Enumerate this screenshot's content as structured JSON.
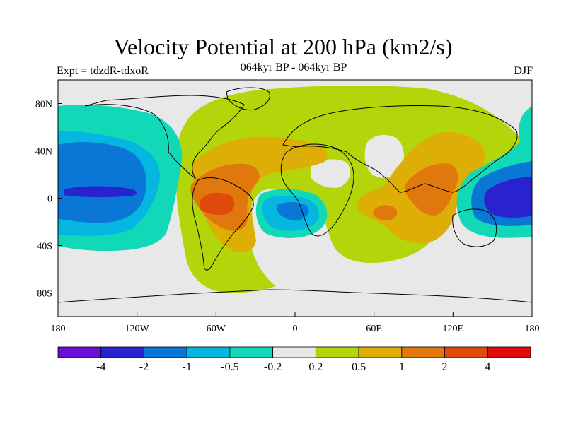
{
  "title": "Velocity Potential at 200 hPa (km2/s)",
  "left_label": "Expt = tdzdR-tdxoR",
  "center_label": "064kyr BP - 064kyr BP",
  "right_label": "DJF",
  "lat_ticks": [
    "80N",
    "40N",
    "0",
    "40S",
    "80S"
  ],
  "lon_ticks": [
    "180",
    "120W",
    "60W",
    "0",
    "60E",
    "120E",
    "180"
  ],
  "colorbar": {
    "colors": [
      "#6a0fd8",
      "#2b22cf",
      "#0a76d6",
      "#05b6e0",
      "#11d9b8",
      "#e8e8e8",
      "#b3d60a",
      "#dcae06",
      "#e0780e",
      "#e04a0b",
      "#e00c0c"
    ],
    "labels": [
      "-4",
      "-2",
      "-1",
      "-0.5",
      "-0.2",
      "0.2",
      "0.5",
      "1",
      "2",
      "4"
    ]
  },
  "colors": {
    "neutral": "#e8e8e8",
    "pos1": "#b3d60a",
    "pos2": "#dcae06",
    "pos3": "#e0780e",
    "pos4": "#e04a0b",
    "neg1": "#11d9b8",
    "neg2": "#05b6e0",
    "neg3": "#0a76d6",
    "neg4": "#2b22cf"
  }
}
